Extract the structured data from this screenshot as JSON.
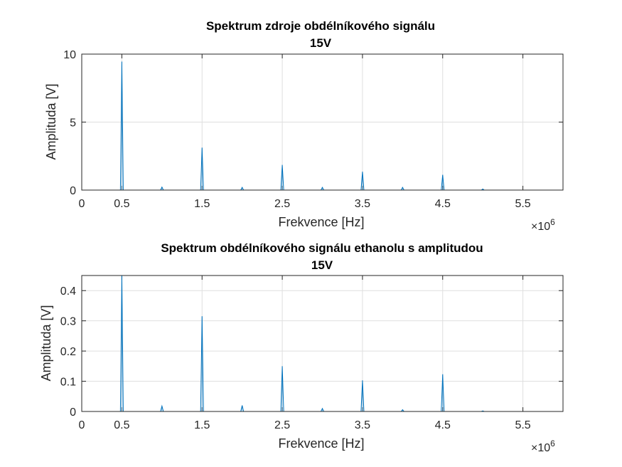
{
  "chart_data": [
    {
      "type": "line",
      "title": "Spektrum zdroje obdélníkového signálu",
      "subtitle": "15V",
      "xlabel": "Frekvence [Hz]",
      "ylabel": "Amplituda [V]",
      "x_exponent_base": "×10",
      "x_exponent_power": "6",
      "xlim": [
        0,
        6
      ],
      "ylim": [
        0,
        10
      ],
      "xticks": [
        0,
        0.5,
        1.5,
        2.5,
        3.5,
        4.5,
        5.5
      ],
      "xtick_labels": [
        "0",
        "0.5",
        "1.5",
        "2.5",
        "3.5",
        "4.5",
        "5.5"
      ],
      "yticks": [
        0,
        5,
        10
      ],
      "ytick_labels": [
        "0",
        "5",
        "10"
      ],
      "grid": true,
      "series": [
        {
          "name": "spectrum",
          "color": "#0072bd",
          "peaks_x": [
            0.5,
            1.0,
            1.5,
            2.0,
            2.5,
            3.0,
            3.5,
            4.0,
            4.5,
            5.0
          ],
          "peaks_y": [
            9.45,
            0.22,
            3.12,
            0.2,
            1.85,
            0.2,
            1.35,
            0.2,
            1.12,
            0.08
          ]
        }
      ]
    },
    {
      "type": "line",
      "title": "Spektrum obdélníkového signálu ethanolu s amplitudou",
      "subtitle": "15V",
      "xlabel": "Frekvence [Hz]",
      "ylabel": "Amplituda [V]",
      "x_exponent_base": "×10",
      "x_exponent_power": "6",
      "xlim": [
        0,
        6
      ],
      "ylim": [
        0,
        0.45
      ],
      "xticks": [
        0,
        0.5,
        1.5,
        2.5,
        3.5,
        4.5,
        5.5
      ],
      "xtick_labels": [
        "0",
        "0.5",
        "1.5",
        "2.5",
        "3.5",
        "4.5",
        "5.5"
      ],
      "yticks": [
        0,
        0.1,
        0.2,
        0.3,
        0.4
      ],
      "ytick_labels": [
        "0",
        "0.1",
        "0.2",
        "0.3",
        "0.4"
      ],
      "grid": true,
      "series": [
        {
          "name": "spectrum",
          "color": "#0072bd",
          "peaks_x": [
            0.5,
            1.0,
            1.5,
            2.0,
            2.5,
            3.0,
            3.5,
            4.0,
            4.5,
            5.0
          ],
          "peaks_y": [
            0.45,
            0.018,
            0.315,
            0.02,
            0.15,
            0.01,
            0.103,
            0.006,
            0.123,
            0.002
          ]
        }
      ]
    }
  ]
}
